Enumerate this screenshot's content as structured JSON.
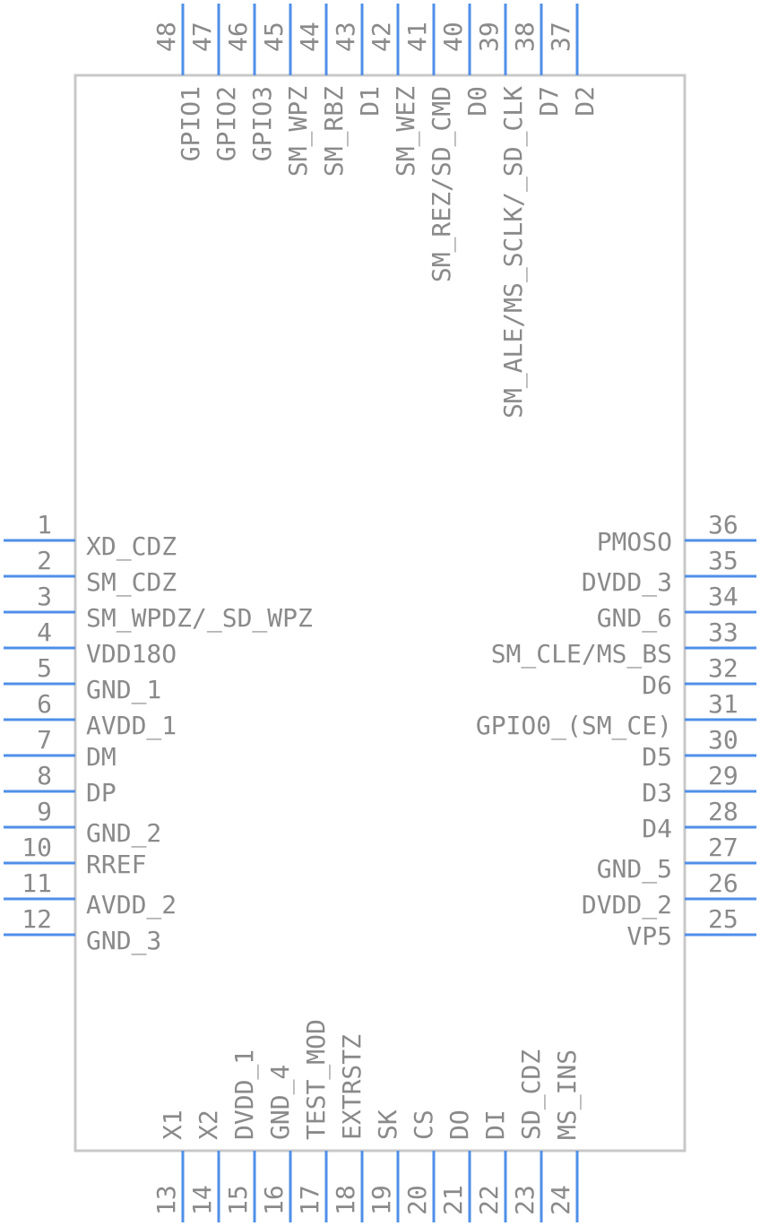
{
  "component": {
    "colors": {
      "body_outline": "#c8c8c8",
      "pin_line": "#4f8fe8",
      "text": "#8a8a8a"
    },
    "pins_left": [
      {
        "num": "1",
        "name": "XD_CDZ"
      },
      {
        "num": "2",
        "name": "SM_CDZ"
      },
      {
        "num": "3",
        "name": "SM_WPDZ/_SD_WPZ"
      },
      {
        "num": "4",
        "name": "VDD18O"
      },
      {
        "num": "5",
        "name": "GND_1"
      },
      {
        "num": "6",
        "name": "AVDD_1"
      },
      {
        "num": "7",
        "name": "DM"
      },
      {
        "num": "8",
        "name": "DP"
      },
      {
        "num": "9",
        "name": "GND_2"
      },
      {
        "num": "10",
        "name": "RREF"
      },
      {
        "num": "11",
        "name": "AVDD_2"
      },
      {
        "num": "12",
        "name": "GND_3"
      }
    ],
    "pins_bottom": [
      {
        "num": "13",
        "name": "X1"
      },
      {
        "num": "14",
        "name": "X2"
      },
      {
        "num": "15",
        "name": "DVDD_1"
      },
      {
        "num": "16",
        "name": "GND_4"
      },
      {
        "num": "17",
        "name": "TEST_MOD"
      },
      {
        "num": "18",
        "name": "EXTRSTZ"
      },
      {
        "num": "19",
        "name": "SK"
      },
      {
        "num": "20",
        "name": "CS"
      },
      {
        "num": "21",
        "name": "DO"
      },
      {
        "num": "22",
        "name": "DI"
      },
      {
        "num": "23",
        "name": "SD_CDZ"
      },
      {
        "num": "24",
        "name": "MS_INS"
      }
    ],
    "pins_right": [
      {
        "num": "25",
        "name": "VP5"
      },
      {
        "num": "26",
        "name": "DVDD_2"
      },
      {
        "num": "27",
        "name": "GND_5"
      },
      {
        "num": "28",
        "name": "D4"
      },
      {
        "num": "29",
        "name": "D3"
      },
      {
        "num": "30",
        "name": "D5"
      },
      {
        "num": "31",
        "name": "GPIO0_(SM_CE)"
      },
      {
        "num": "32",
        "name": "D6"
      },
      {
        "num": "33",
        "name": "SM_CLE/MS_BS"
      },
      {
        "num": "34",
        "name": "GND_6"
      },
      {
        "num": "35",
        "name": "DVDD_3"
      },
      {
        "num": "36",
        "name": "PMOSO"
      }
    ],
    "pins_top": [
      {
        "num": "37",
        "name": "D2"
      },
      {
        "num": "38",
        "name": "D7"
      },
      {
        "num": "39",
        "name": "SM_ALE/MS_SCLK/_SD_CLK"
      },
      {
        "num": "40",
        "name": "D0"
      },
      {
        "num": "41",
        "name": "SM_REZ/SD_CMD"
      },
      {
        "num": "42",
        "name": "SM_WEZ"
      },
      {
        "num": "43",
        "name": "D1"
      },
      {
        "num": "44",
        "name": "SM_RBZ"
      },
      {
        "num": "45",
        "name": "SM_WPZ"
      },
      {
        "num": "46",
        "name": "GPIO3"
      },
      {
        "num": "47",
        "name": "GPIO2"
      },
      {
        "num": "48",
        "name": "GPIO1"
      }
    ]
  }
}
